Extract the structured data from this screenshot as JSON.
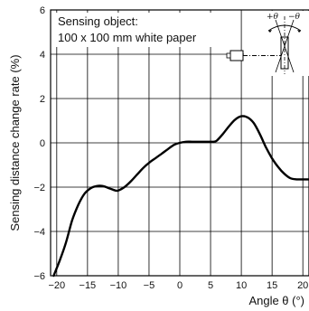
{
  "chart_data": {
    "type": "line",
    "xlabel": "Angle θ (°)",
    "ylabel": "Sensing distance change rate (%)",
    "xlim": [
      -21,
      21
    ],
    "ylim": [
      -6,
      6
    ],
    "x_ticks": [
      -20,
      -15,
      -10,
      -5,
      0,
      5,
      10,
      15,
      20
    ],
    "x_tick_labels": [
      "−20",
      "−15",
      "−10",
      "−5",
      "0",
      "5",
      "10",
      "15",
      "20"
    ],
    "y_ticks": [
      -6,
      -4,
      -2,
      0,
      2,
      4,
      6
    ],
    "y_tick_labels": [
      "−6",
      "−4",
      "−2",
      "0",
      "2",
      "4",
      "6"
    ],
    "grid": true,
    "annotation": [
      "Sensing object:",
      "100 x 100 mm white paper"
    ],
    "diagram_labels": {
      "plus_theta": "+θ",
      "minus_theta": "−θ"
    },
    "series": [
      {
        "color": "#000000",
        "x": [
          -20.5,
          -19.5,
          -18.5,
          -17.5,
          -16.5,
          -15.5,
          -14.5,
          -13.5,
          -12.5,
          -11.5,
          -10.5,
          -10,
          -9,
          -8,
          -7,
          -6,
          -5,
          -4,
          -3,
          -2,
          -1,
          0,
          1,
          2,
          3,
          4,
          5,
          5.5,
          6,
          7,
          8,
          9,
          10,
          11,
          12,
          13,
          14,
          15,
          16,
          17,
          18,
          19,
          20,
          21
        ],
        "y": [
          -6.0,
          -5.3,
          -4.5,
          -3.5,
          -2.8,
          -2.3,
          -2.05,
          -1.95,
          -1.95,
          -2.05,
          -2.15,
          -2.15,
          -2.0,
          -1.75,
          -1.45,
          -1.15,
          -0.9,
          -0.7,
          -0.5,
          -0.3,
          -0.1,
          0.0,
          0.05,
          0.05,
          0.05,
          0.05,
          0.05,
          0.05,
          0.1,
          0.4,
          0.75,
          1.05,
          1.2,
          1.15,
          0.9,
          0.4,
          -0.2,
          -0.7,
          -1.1,
          -1.4,
          -1.6,
          -1.65,
          -1.65,
          -1.65
        ]
      }
    ]
  }
}
